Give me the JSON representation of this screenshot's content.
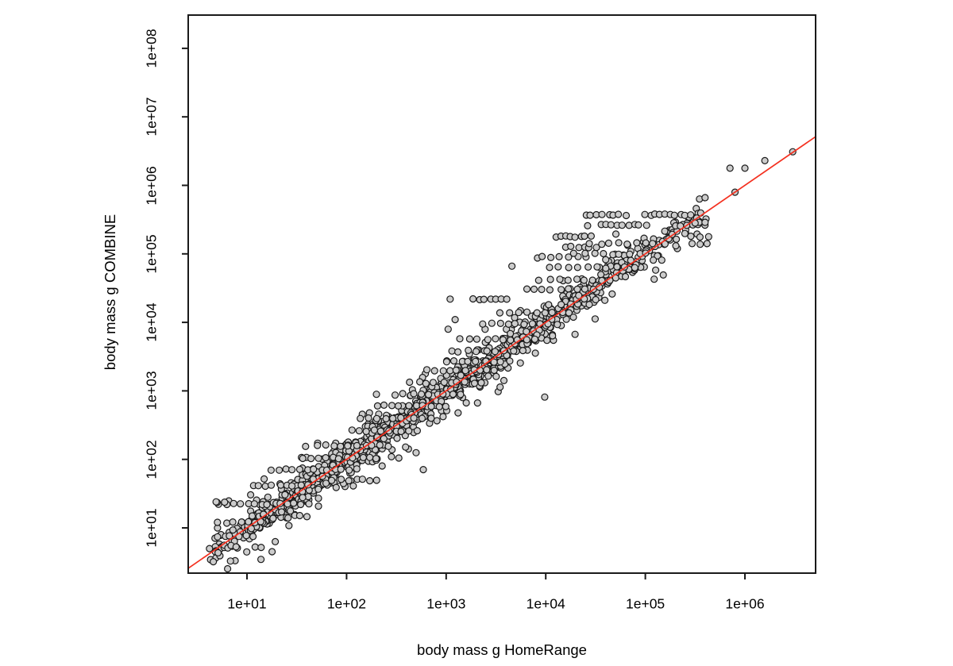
{
  "chart_data": {
    "type": "scatter",
    "title": "",
    "xlabel": "body mass g HomeRange",
    "ylabel": "body mass g COMBINE",
    "x_scale": "log10",
    "y_scale": "log10",
    "x_axis": {
      "tick_labels": [
        "1e+01",
        "1e+02",
        "1e+03",
        "1e+04",
        "1e+05",
        "1e+06"
      ],
      "tick_exponents": [
        1,
        2,
        3,
        4,
        5,
        6
      ],
      "range_exponents": [
        0.41,
        6.71
      ]
    },
    "y_axis": {
      "tick_labels": [
        "1e+01",
        "1e+02",
        "1e+03",
        "1e+04",
        "1e+05",
        "1e+06",
        "1e+07",
        "1e+08"
      ],
      "tick_exponents": [
        1,
        2,
        3,
        4,
        5,
        6,
        7,
        8
      ],
      "range_exponents": [
        0.34,
        8.55
      ]
    },
    "grid": false,
    "legend": null,
    "identity_line": {
      "slope": 1,
      "intercept": 0,
      "color": "#f4301f",
      "width": 1.7
    },
    "marker": {
      "shape": "circle",
      "radius": 4,
      "fill": "#cccccc",
      "stroke": "#1a1a1a",
      "stroke_width": 1.2
    },
    "frame": {
      "stroke": "#1a1a1a",
      "width": 2
    },
    "seed": 42,
    "cloud_segments": [
      {
        "t0": 0.62,
        "t1": 1.0,
        "n": 45
      },
      {
        "t0": 1.0,
        "t1": 1.25,
        "n": 60
      },
      {
        "t0": 1.25,
        "t1": 1.5,
        "n": 75
      },
      {
        "t0": 1.5,
        "t1": 1.75,
        "n": 80
      },
      {
        "t0": 1.75,
        "t1": 2.0,
        "n": 85
      },
      {
        "t0": 2.0,
        "t1": 2.25,
        "n": 90
      },
      {
        "t0": 2.25,
        "t1": 2.5,
        "n": 90
      },
      {
        "t0": 2.5,
        "t1": 2.75,
        "n": 90
      },
      {
        "t0": 2.75,
        "t1": 3.0,
        "n": 85
      },
      {
        "t0": 3.0,
        "t1": 3.25,
        "n": 80
      },
      {
        "t0": 3.25,
        "t1": 3.5,
        "n": 75
      },
      {
        "t0": 3.5,
        "t1": 3.75,
        "n": 70
      },
      {
        "t0": 3.75,
        "t1": 4.0,
        "n": 62
      },
      {
        "t0": 4.0,
        "t1": 4.25,
        "n": 56
      },
      {
        "t0": 4.25,
        "t1": 4.5,
        "n": 50
      },
      {
        "t0": 4.5,
        "t1": 4.75,
        "n": 46
      },
      {
        "t0": 4.75,
        "t1": 5.0,
        "n": 40
      },
      {
        "t0": 5.0,
        "t1": 5.25,
        "n": 30
      },
      {
        "t0": 5.25,
        "t1": 5.5,
        "n": 22
      },
      {
        "t0": 5.5,
        "t1": 5.65,
        "n": 8
      }
    ],
    "horizontal_runs": [
      {
        "y": 0.88,
        "x0": 0.7,
        "x1": 1.05,
        "n": 6
      },
      {
        "y": 1.08,
        "x0": 0.72,
        "x1": 1.15,
        "n": 7
      },
      {
        "y": 1.35,
        "x0": 0.73,
        "x1": 1.62,
        "n": 14
      },
      {
        "y": 1.38,
        "x0": 0.69,
        "x1": 0.8,
        "n": 2
      },
      {
        "y": 1.62,
        "x0": 1.05,
        "x1": 1.6,
        "n": 9
      },
      {
        "y": 1.85,
        "x0": 1.25,
        "x1": 2.1,
        "n": 13
      },
      {
        "y": 1.7,
        "x0": 1.95,
        "x1": 2.3,
        "n": 6
      },
      {
        "y": 2.02,
        "x0": 1.55,
        "x1": 2.3,
        "n": 11
      },
      {
        "y": 2.2,
        "x0": 1.7,
        "x1": 2.42,
        "n": 10
      },
      {
        "y": 2.42,
        "x0": 2.05,
        "x1": 2.7,
        "n": 10
      },
      {
        "y": 2.6,
        "x0": 2.15,
        "x1": 2.85,
        "n": 10
      },
      {
        "y": 2.78,
        "x0": 2.3,
        "x1": 3.0,
        "n": 10
      },
      {
        "y": 2.95,
        "x0": 2.5,
        "x1": 3.15,
        "n": 9
      },
      {
        "y": 3.12,
        "x0": 2.65,
        "x1": 3.35,
        "n": 10
      },
      {
        "y": 3.3,
        "x0": 2.8,
        "x1": 3.5,
        "n": 10
      },
      {
        "y": 3.43,
        "x0": 3.0,
        "x1": 3.62,
        "n": 9
      },
      {
        "y": 3.58,
        "x0": 3.05,
        "x1": 3.75,
        "n": 9
      },
      {
        "y": 3.75,
        "x0": 3.15,
        "x1": 3.9,
        "n": 10
      },
      {
        "y": 3.98,
        "x0": 3.38,
        "x1": 4.1,
        "n": 10
      },
      {
        "y": 4.15,
        "x0": 3.55,
        "x1": 4.25,
        "n": 9
      },
      {
        "y": 4.34,
        "x0": 3.28,
        "x1": 3.6,
        "n": 7
      },
      {
        "y": 4.48,
        "x0": 3.8,
        "x1": 4.5,
        "n": 9
      },
      {
        "y": 4.62,
        "x0": 3.95,
        "x1": 4.65,
        "n": 9
      },
      {
        "y": 4.8,
        "x0": 4.05,
        "x1": 4.88,
        "n": 10
      },
      {
        "y": 4.95,
        "x0": 3.9,
        "x1": 4.4,
        "n": 7
      },
      {
        "y": 5.0,
        "x0": 4.3,
        "x1": 5.02,
        "n": 9
      },
      {
        "y": 5.1,
        "x0": 4.2,
        "x1": 4.5,
        "n": 6
      },
      {
        "y": 5.15,
        "x0": 4.45,
        "x1": 5.18,
        "n": 9
      },
      {
        "y": 5.25,
        "x0": 4.1,
        "x1": 4.45,
        "n": 8
      },
      {
        "y": 5.25,
        "x0": 5.44,
        "x1": 5.63,
        "n": 3
      },
      {
        "y": 5.42,
        "x0": 4.55,
        "x1": 5.0,
        "n": 9
      },
      {
        "y": 5.42,
        "x0": 5.3,
        "x1": 5.6,
        "n": 6
      },
      {
        "y": 5.57,
        "x0": 4.4,
        "x1": 4.8,
        "n": 8
      },
      {
        "y": 5.57,
        "x0": 5.0,
        "x1": 5.45,
        "n": 10
      }
    ],
    "notable_points": [
      [
        3.99,
        2.91
      ],
      [
        2.77,
        1.85
      ],
      [
        3.04,
        4.34
      ],
      [
        3.09,
        4.04
      ],
      [
        3.02,
        3.9
      ],
      [
        3.66,
        4.82
      ],
      [
        4.42,
        5.41
      ],
      [
        2.3,
        2.95
      ],
      [
        0.69,
        1.38
      ],
      [
        5.54,
        5.46
      ],
      [
        5.6,
        5.46
      ],
      [
        5.5,
        5.45
      ],
      [
        5.6,
        5.82
      ],
      [
        5.85,
        6.25
      ],
      [
        6.0,
        6.25
      ],
      [
        6.2,
        6.36
      ],
      [
        6.48,
        6.49
      ],
      [
        5.9,
        5.9
      ],
      [
        5.55,
        5.14
      ],
      [
        5.62,
        5.15
      ],
      [
        5.47,
        5.15
      ]
    ]
  }
}
